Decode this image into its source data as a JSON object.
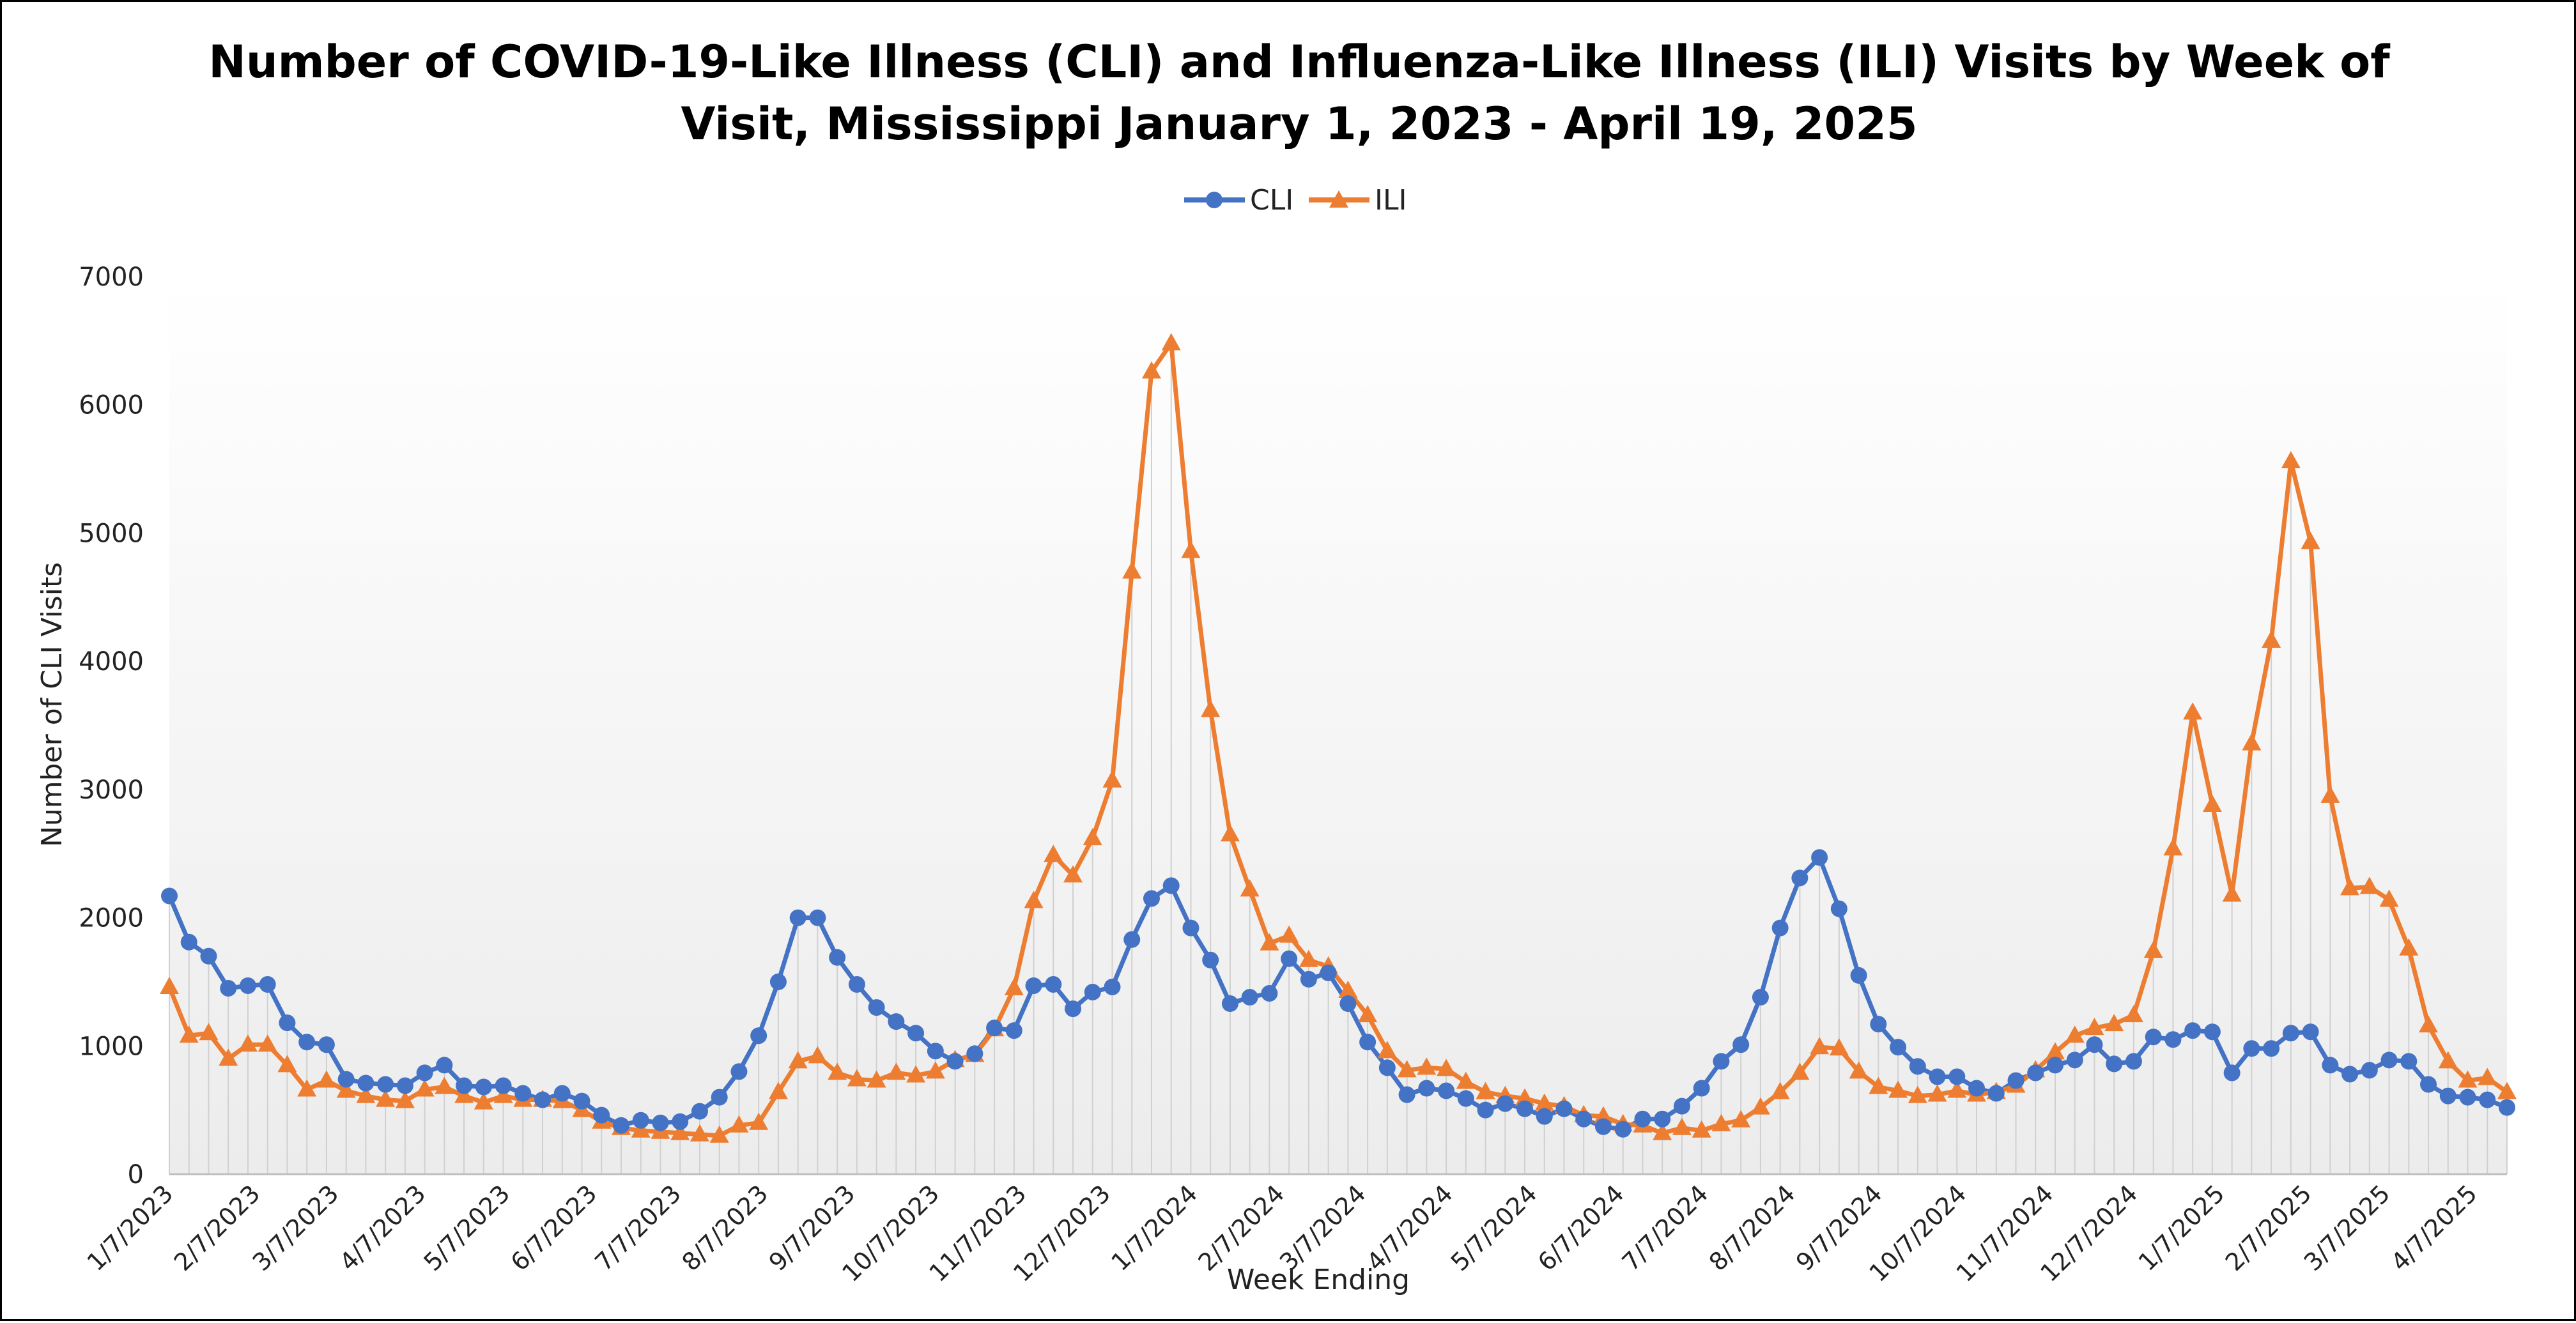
{
  "chart_data": {
    "type": "line",
    "title_lines": [
      "Number of COVID-19-Like Illness (CLI) and Influenza-Like Illness (ILI) Visits by Week of",
      "Visit, Mississippi January 1, 2023 - April 19, 2025"
    ],
    "xlabel": "Week Ending",
    "ylabel": "Number of CLI Visits",
    "ylim": [
      0,
      7000
    ],
    "y_ticks": [
      "0",
      "1000",
      "2000",
      "3000",
      "4000",
      "5000",
      "6000",
      "7000"
    ],
    "x_tick_labels": [
      "1/7/2023",
      "2/7/2023",
      "3/7/2023",
      "4/7/2023",
      "5/7/2023",
      "6/7/2023",
      "7/7/2023",
      "8/7/2023",
      "9/7/2023",
      "10/7/2023",
      "11/7/2023",
      "12/7/2023",
      "1/7/2024",
      "2/7/2024",
      "3/7/2024",
      "4/7/2024",
      "5/7/2024",
      "6/7/2024",
      "7/7/2024",
      "8/7/2024",
      "9/7/2024",
      "10/7/2024",
      "11/7/2024",
      "12/7/2024",
      "1/7/2025",
      "2/7/2025",
      "3/7/2025",
      "4/7/2025"
    ],
    "x_first_week": "1/7/2023",
    "x_last_week": "4/19/2025",
    "legend_position": "top",
    "drop_lines": true,
    "grid": false,
    "series": [
      {
        "name": "CLI",
        "color": "#4472C4",
        "marker": "circle",
        "values": [
          2170,
          1810,
          1700,
          1450,
          1470,
          1480,
          1180,
          1030,
          1010,
          740,
          710,
          700,
          690,
          790,
          850,
          690,
          680,
          690,
          630,
          580,
          630,
          570,
          460,
          380,
          420,
          400,
          410,
          490,
          600,
          800,
          1080,
          1500,
          2000,
          2000,
          1690,
          1480,
          1300,
          1190,
          1100,
          960,
          880,
          940,
          1140,
          1120,
          1470,
          1480,
          1290,
          1420,
          1460,
          1830,
          2150,
          2250,
          1920,
          1670,
          1330,
          1380,
          1410,
          1680,
          1520,
          1570,
          1330,
          1030,
          830,
          620,
          670,
          650,
          590,
          500,
          550,
          510,
          450,
          510,
          430,
          370,
          350,
          430,
          430,
          530,
          670,
          880,
          1010,
          1380,
          1920,
          2310,
          2470,
          2070,
          1550,
          1170,
          990,
          840,
          760,
          760,
          670,
          630,
          730,
          790,
          850,
          890,
          1010,
          860,
          880,
          1070,
          1050,
          1120,
          1110,
          790,
          980,
          980,
          1100,
          1110,
          850,
          780,
          810,
          890,
          880,
          700,
          610,
          600,
          580,
          520
        ]
      },
      {
        "name": "ILI",
        "color": "#ED7D31",
        "marker": "triangle",
        "values": [
          1460,
          1080,
          1100,
          900,
          1010,
          1010,
          850,
          660,
          730,
          650,
          610,
          580,
          570,
          660,
          680,
          610,
          560,
          610,
          580,
          580,
          570,
          500,
          410,
          360,
          340,
          330,
          320,
          310,
          300,
          380,
          400,
          640,
          880,
          920,
          790,
          740,
          730,
          790,
          770,
          800,
          890,
          930,
          1130,
          1450,
          2130,
          2490,
          2330,
          2620,
          3070,
          4700,
          6260,
          6480,
          4860,
          3620,
          2650,
          2220,
          1800,
          1860,
          1670,
          1620,
          1430,
          1240,
          960,
          810,
          830,
          820,
          720,
          640,
          610,
          590,
          550,
          530,
          460,
          450,
          390,
          380,
          320,
          360,
          340,
          390,
          420,
          520,
          640,
          790,
          990,
          980,
          800,
          680,
          650,
          610,
          620,
          650,
          620,
          640,
          690,
          810,
          950,
          1080,
          1140,
          1170,
          1240,
          1740,
          2540,
          3600,
          2880,
          2180,
          3360,
          4160,
          5560,
          4930,
          2950,
          2230,
          2240,
          2140,
          1760,
          1160,
          880,
          730,
          750,
          640
        ]
      }
    ]
  }
}
